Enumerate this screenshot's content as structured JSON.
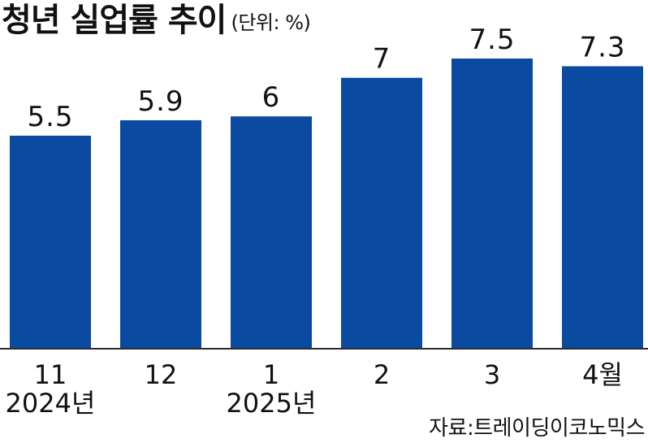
{
  "title": "청년 실업률 추이",
  "unit_label": "(단위: %)",
  "source": "자료:트레이딩이코노믹스",
  "colors": {
    "bar": "#0a4aa0",
    "axis": "#2b2b2b"
  },
  "chart_data": {
    "type": "bar",
    "title": "청년 실업률 추이",
    "unit": "%",
    "categories": [
      "11",
      "12",
      "1",
      "2",
      "3",
      "4월"
    ],
    "year_labels": [
      "2024년",
      "",
      "2025년",
      "",
      "",
      ""
    ],
    "values": [
      5.5,
      5.9,
      6,
      7,
      7.5,
      7.3
    ],
    "value_labels": [
      "5.5",
      "5.9",
      "6",
      "7",
      "7.5",
      "7.3"
    ],
    "ylim": [
      0,
      7.5
    ],
    "grid": false,
    "legend": "none"
  }
}
